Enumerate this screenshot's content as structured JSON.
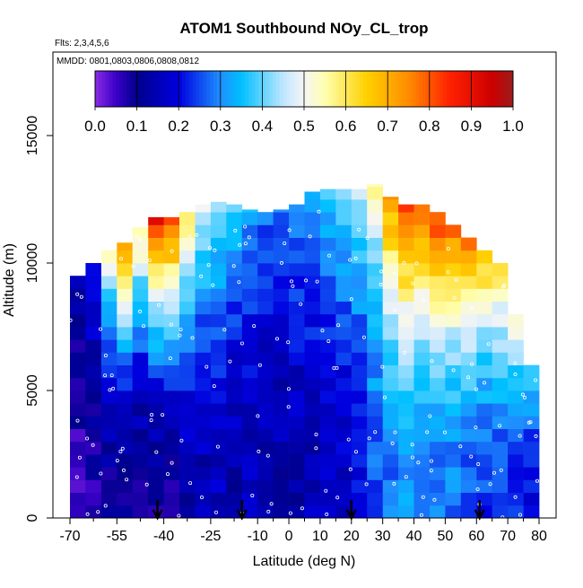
{
  "chart_data": {
    "type": "heatmap",
    "title": "ATOM1 Southbound NOy_CL_trop",
    "subtitle_flights": "Flts: 2,3,4,5,6",
    "subtitle_dates": "MMDD: 0801,0803,0806,0808,0812",
    "xlabel": "Latitude (deg N)",
    "ylabel": "Altitude (m)",
    "xlim": [
      -70,
      85
    ],
    "ylim": [
      0,
      17500
    ],
    "x_ticks": [
      -70,
      -55,
      -40,
      -25,
      -10,
      0,
      10,
      20,
      30,
      40,
      50,
      60,
      70,
      80
    ],
    "x_tick_labels": [
      "-70",
      "-55",
      "-40",
      "-25",
      "-10",
      "0",
      "10",
      "20",
      "30",
      "40",
      "50",
      "60",
      "70",
      "80"
    ],
    "x_minor_ticks": [
      -62.5,
      -47.5,
      -32.5,
      -17.5,
      -5,
      5,
      15,
      25,
      35,
      45,
      55,
      65,
      75
    ],
    "y_ticks": [
      0,
      5000,
      10000,
      15000
    ],
    "y_tick_labels": [
      "0",
      "5000",
      "10000",
      "15000"
    ],
    "colorbar": {
      "min": 0.0,
      "max": 1.0,
      "tick_values": [
        0.0,
        0.1,
        0.2,
        0.3,
        0.4,
        0.5,
        0.6,
        0.7,
        0.8,
        0.9,
        1.0
      ],
      "tick_labels": [
        "0.0",
        "0.1",
        "0.2",
        "0.3",
        "0.4",
        "0.5",
        "0.6",
        "0.7",
        "0.8",
        "0.9",
        "1.0"
      ],
      "stops": [
        {
          "v": 0.0,
          "color": "#8a2be2"
        },
        {
          "v": 0.05,
          "color": "#3a00c8"
        },
        {
          "v": 0.1,
          "color": "#00008b"
        },
        {
          "v": 0.2,
          "color": "#0000e0"
        },
        {
          "v": 0.3,
          "color": "#1e90ff"
        },
        {
          "v": 0.35,
          "color": "#00bfff"
        },
        {
          "v": 0.45,
          "color": "#bfe6ff"
        },
        {
          "v": 0.5,
          "color": "#f5f5f5"
        },
        {
          "v": 0.55,
          "color": "#ffffb0"
        },
        {
          "v": 0.65,
          "color": "#ffd000"
        },
        {
          "v": 0.75,
          "color": "#ff8c00"
        },
        {
          "v": 0.85,
          "color": "#ff2000"
        },
        {
          "v": 0.95,
          "color": "#cc0000"
        },
        {
          "v": 1.0,
          "color": "#9b1c1c"
        }
      ]
    },
    "ground_arrows_latitude": [
      -42,
      -15,
      20,
      61
    ],
    "lat_columns": [
      {
        "lat": -67.5,
        "top": 9500,
        "lo": 0.06,
        "hi": 0.16
      },
      {
        "lat": -62.5,
        "top": 10000,
        "lo": 0.08,
        "hi": 0.24
      },
      {
        "lat": -57.5,
        "top": 10500,
        "lo": 0.1,
        "hi": 0.55
      },
      {
        "lat": -52.5,
        "top": 10800,
        "lo": 0.09,
        "hi": 0.75
      },
      {
        "lat": -47.5,
        "top": 11400,
        "lo": 0.09,
        "hi": 0.6
      },
      {
        "lat": -42.5,
        "top": 11800,
        "lo": 0.09,
        "hi": 0.9
      },
      {
        "lat": -37.5,
        "top": 11800,
        "lo": 0.1,
        "hi": 0.85
      },
      {
        "lat": -32.5,
        "top": 12000,
        "lo": 0.14,
        "hi": 0.6
      },
      {
        "lat": -27.5,
        "top": 12300,
        "lo": 0.14,
        "hi": 0.5
      },
      {
        "lat": -22.5,
        "top": 12400,
        "lo": 0.16,
        "hi": 0.45
      },
      {
        "lat": -17.5,
        "top": 12300,
        "lo": 0.14,
        "hi": 0.4
      },
      {
        "lat": -12.5,
        "top": 12100,
        "lo": 0.15,
        "hi": 0.32
      },
      {
        "lat": -7.5,
        "top": 12000,
        "lo": 0.14,
        "hi": 0.28
      },
      {
        "lat": -2.5,
        "top": 12100,
        "lo": 0.13,
        "hi": 0.3
      },
      {
        "lat": 2.5,
        "top": 12300,
        "lo": 0.14,
        "hi": 0.32
      },
      {
        "lat": 7.5,
        "top": 12800,
        "lo": 0.15,
        "hi": 0.35
      },
      {
        "lat": 12.5,
        "top": 12900,
        "lo": 0.16,
        "hi": 0.38
      },
      {
        "lat": 17.5,
        "top": 12900,
        "lo": 0.18,
        "hi": 0.4
      },
      {
        "lat": 22.5,
        "top": 12900,
        "lo": 0.2,
        "hi": 0.45
      },
      {
        "lat": 27.5,
        "top": 13100,
        "lo": 0.26,
        "hi": 0.55
      },
      {
        "lat": 32.5,
        "top": 12600,
        "lo": 0.28,
        "hi": 0.75
      },
      {
        "lat": 37.5,
        "top": 12300,
        "lo": 0.3,
        "hi": 0.85
      },
      {
        "lat": 42.5,
        "top": 12300,
        "lo": 0.3,
        "hi": 0.8
      },
      {
        "lat": 47.5,
        "top": 12000,
        "lo": 0.28,
        "hi": 0.85
      },
      {
        "lat": 52.5,
        "top": 11500,
        "lo": 0.28,
        "hi": 0.8
      },
      {
        "lat": 57.5,
        "top": 11000,
        "lo": 0.26,
        "hi": 0.8
      },
      {
        "lat": 62.5,
        "top": 10500,
        "lo": 0.24,
        "hi": 0.7
      },
      {
        "lat": 67.5,
        "top": 10000,
        "lo": 0.24,
        "hi": 0.65
      },
      {
        "lat": 72.5,
        "top": 8000,
        "lo": 0.22,
        "hi": 0.55
      },
      {
        "lat": 77.5,
        "top": 6000,
        "lo": 0.2,
        "hi": 0.4
      }
    ],
    "grid": false,
    "legend_placement": "top"
  }
}
